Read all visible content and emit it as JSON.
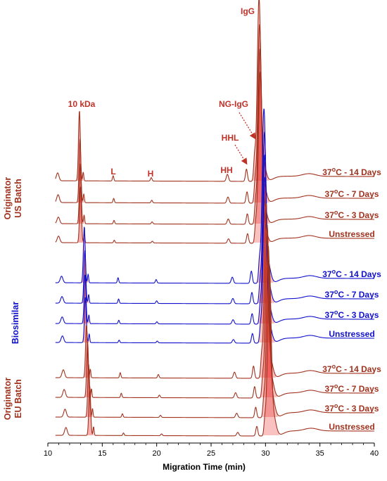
{
  "colors": {
    "originator": "#a0321e",
    "biosimilar": "#1010cc",
    "annotation": "#c03228",
    "main_peak_fill": "#e8201e",
    "axis": "#000000"
  },
  "chart_data": {
    "type": "line",
    "xlabel": "Migration Time (min)",
    "ylabel": "",
    "xlim": [
      10,
      40
    ],
    "xticks": [
      10,
      15,
      20,
      25,
      30,
      35,
      40
    ],
    "grid": false,
    "peak_labels": [
      {
        "id": "10kda",
        "text": "10 kDa"
      },
      {
        "id": "l",
        "text": "L"
      },
      {
        "id": "h",
        "text": "H"
      },
      {
        "id": "hh",
        "text": "HH"
      },
      {
        "id": "hhl",
        "text": "HHL"
      },
      {
        "id": "ngigg",
        "text": "NG-IgG"
      },
      {
        "id": "igg",
        "text": "IgG"
      }
    ],
    "groups": [
      {
        "name": "Originator US Batch",
        "lines": [
          "Originator",
          "US Batch"
        ],
        "color_key": "originator",
        "traces": [
          {
            "label": "37°C - 14 Days",
            "label_main": "37",
            "label_sup": "o",
            "label_rest": "C - 14 Days",
            "mig_shift": 0.0,
            "peaks": {
              "p10k": 0.4,
              "L": 0.03,
              "H": 0.02,
              "HH": 0.04,
              "HHL": 0.07,
              "NG": 0.13,
              "IgG": 1.0,
              "small": 0.06
            }
          },
          {
            "label": "37°C - 7 Days",
            "label_main": "37",
            "label_sup": "o",
            "label_rest": "C - 7 Days",
            "mig_shift": 0.05,
            "peaks": {
              "p10k": 0.36,
              "L": 0.025,
              "H": 0.015,
              "HH": 0.035,
              "HHL": 0.065,
              "NG": 0.12,
              "IgG": 0.97,
              "small": 0.06
            }
          },
          {
            "label": "37°C - 3 Days",
            "label_main": "37",
            "label_sup": "o",
            "label_rest": "C - 3 Days",
            "mig_shift": 0.08,
            "peaks": {
              "p10k": 0.34,
              "L": 0.02,
              "H": 0.012,
              "HH": 0.03,
              "HHL": 0.06,
              "NG": 0.11,
              "IgG": 0.95,
              "small": 0.05
            }
          },
          {
            "label": "Unstressed",
            "label_main": "Unstressed",
            "label_sup": "",
            "label_rest": "",
            "mig_shift": 0.1,
            "peaks": {
              "p10k": 0.32,
              "L": 0.015,
              "H": 0.01,
              "HH": 0.025,
              "HHL": 0.055,
              "NG": 0.1,
              "IgG": 0.93,
              "small": 0.05
            }
          }
        ]
      },
      {
        "name": "Biosimilar",
        "lines": [
          "Biosimilar"
        ],
        "color_key": "biosimilar",
        "traces": [
          {
            "label": "37°C - 14 Days",
            "label_main": "37",
            "label_sup": "o",
            "label_rest": "C - 14 Days",
            "mig_shift": 0.45,
            "peaks": {
              "p10k": 0.32,
              "L": 0.03,
              "H": 0.02,
              "HH": 0.035,
              "HHL": 0.07,
              "NG": 0.12,
              "IgG": 0.95,
              "small": 0.05
            }
          },
          {
            "label": "37°C - 7 Days",
            "label_main": "37",
            "label_sup": "o",
            "label_rest": "C - 7 Days",
            "mig_shift": 0.5,
            "peaks": {
              "p10k": 0.3,
              "L": 0.025,
              "H": 0.015,
              "HH": 0.03,
              "HHL": 0.065,
              "NG": 0.11,
              "IgG": 0.93,
              "small": 0.05
            }
          },
          {
            "label": "37°C - 3 Days",
            "label_main": "37",
            "label_sup": "o",
            "label_rest": "C - 3 Days",
            "mig_shift": 0.52,
            "peaks": {
              "p10k": 0.28,
              "L": 0.02,
              "H": 0.012,
              "HH": 0.025,
              "HHL": 0.06,
              "NG": 0.1,
              "IgG": 0.92,
              "small": 0.05
            }
          },
          {
            "label": "Unstressed",
            "label_main": "Unstressed",
            "label_sup": "",
            "label_rest": "",
            "mig_shift": 0.55,
            "peaks": {
              "p10k": 0.26,
              "L": 0.015,
              "H": 0.01,
              "HH": 0.02,
              "HHL": 0.055,
              "NG": 0.09,
              "IgG": 0.9,
              "small": 0.05
            }
          }
        ]
      },
      {
        "name": "Originator EU Batch",
        "lines": [
          "Originator",
          "EU Batch"
        ],
        "color_key": "originator",
        "traces": [
          {
            "label": "37°C - 14 Days",
            "label_main": "37",
            "label_sup": "o",
            "label_rest": "C - 14 Days",
            "mig_shift": 0.65,
            "peaks": {
              "p10k": 0.3,
              "L": 0.03,
              "H": 0.02,
              "HH": 0.035,
              "HHL": 0.07,
              "NG": 0.12,
              "IgG": 0.95,
              "small": 0.06
            }
          },
          {
            "label": "37°C - 7 Days",
            "label_main": "37",
            "label_sup": "o",
            "label_rest": "C - 7 Days",
            "mig_shift": 0.75,
            "peaks": {
              "p10k": 0.32,
              "L": 0.025,
              "H": 0.015,
              "HH": 0.03,
              "HHL": 0.065,
              "NG": 0.11,
              "IgG": 0.94,
              "small": 0.06
            }
          },
          {
            "label": "37°C - 3 Days",
            "label_main": "37",
            "label_sup": "o",
            "label_rest": "C - 3 Days",
            "mig_shift": 0.85,
            "peaks": {
              "p10k": 0.3,
              "L": 0.02,
              "H": 0.012,
              "HH": 0.025,
              "HHL": 0.06,
              "NG": 0.1,
              "IgG": 0.93,
              "small": 0.06
            }
          },
          {
            "label": "Unstressed",
            "label_main": "Unstressed",
            "label_sup": "",
            "label_rest": "",
            "mig_shift": 0.95,
            "peaks": {
              "p10k": 0.28,
              "L": 0.015,
              "H": 0.01,
              "HH": 0.02,
              "HHL": 0.055,
              "NG": 0.09,
              "IgG": 0.92,
              "small": 0.06
            }
          }
        ]
      }
    ]
  }
}
